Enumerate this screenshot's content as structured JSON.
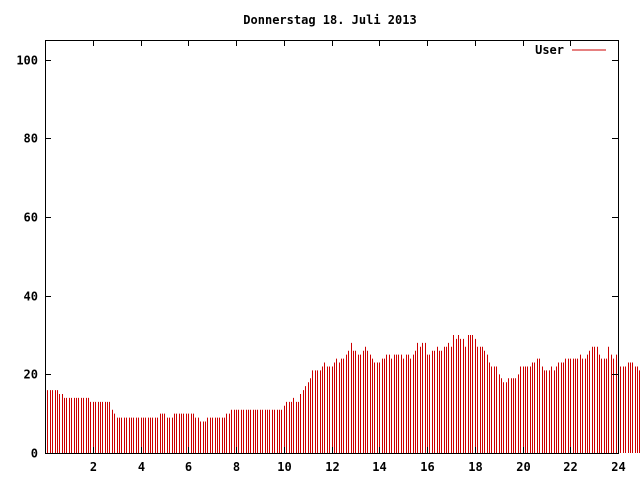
{
  "chart_data": {
    "type": "bar",
    "title": "Donnerstag 18. Juli 2013",
    "xlabel": "",
    "ylabel": "",
    "xlim": [
      0,
      24
    ],
    "ylim": [
      0,
      105
    ],
    "xticks": [
      2,
      4,
      6,
      8,
      10,
      12,
      14,
      16,
      18,
      20,
      22,
      24
    ],
    "yticks": [
      0,
      20,
      40,
      60,
      80,
      100
    ],
    "grid": false,
    "legend_position": "top-right",
    "colors": {
      "series": "#cc0000",
      "axis": "#000000",
      "background": "#ffffff"
    },
    "series": [
      {
        "name": "User",
        "step_hours": 0.1,
        "values": [
          16,
          16,
          16,
          16,
          16,
          16,
          15,
          15,
          14,
          14,
          14,
          14,
          14,
          14,
          14,
          14,
          14,
          14,
          14,
          13,
          13,
          13,
          13,
          13,
          13,
          13,
          13,
          13,
          11,
          10,
          9,
          9,
          9,
          9,
          9,
          9,
          9,
          9,
          9,
          9,
          9,
          9,
          9,
          9,
          9,
          9,
          9,
          9,
          10,
          10,
          10,
          9,
          9,
          9,
          10,
          10,
          10,
          10,
          10,
          10,
          10,
          10,
          10,
          9,
          9,
          8,
          8,
          8,
          9,
          9,
          9,
          9,
          9,
          9,
          9,
          9,
          10,
          10,
          11,
          11,
          11,
          11,
          11,
          11,
          11,
          11,
          11,
          11,
          11,
          11,
          11,
          11,
          11,
          11,
          11,
          11,
          11,
          11,
          11,
          11,
          12,
          13,
          13,
          13,
          14,
          13,
          13,
          15,
          16,
          17,
          18,
          19,
          21,
          21,
          21,
          21,
          22,
          23,
          22,
          22,
          22,
          23,
          24,
          23,
          24,
          24,
          25,
          26,
          28,
          26,
          26,
          25,
          25,
          26,
          27,
          26,
          25,
          24,
          23,
          23,
          23,
          24,
          24,
          25,
          25,
          24,
          25,
          25,
          25,
          25,
          24,
          25,
          25,
          24,
          25,
          26,
          28,
          27,
          28,
          28,
          25,
          25,
          26,
          26,
          27,
          26,
          26,
          27,
          27,
          28,
          27,
          30,
          29,
          30,
          29,
          29,
          27,
          30,
          30,
          30,
          29,
          27,
          27,
          27,
          26,
          25,
          23,
          22,
          22,
          22,
          20,
          19,
          18,
          18,
          19,
          19,
          19,
          19,
          20,
          22,
          22,
          22,
          22,
          22,
          23,
          23,
          24,
          24,
          22,
          21,
          21,
          21,
          22,
          21,
          22,
          23,
          23,
          23,
          24,
          24,
          24,
          24,
          24,
          24,
          25,
          24,
          24,
          25,
          26,
          27,
          27,
          27,
          25,
          24,
          24,
          24,
          27,
          25,
          24,
          25,
          22,
          22,
          22,
          22,
          23,
          23,
          23,
          22,
          22,
          21,
          19,
          18,
          17
        ]
      }
    ]
  }
}
